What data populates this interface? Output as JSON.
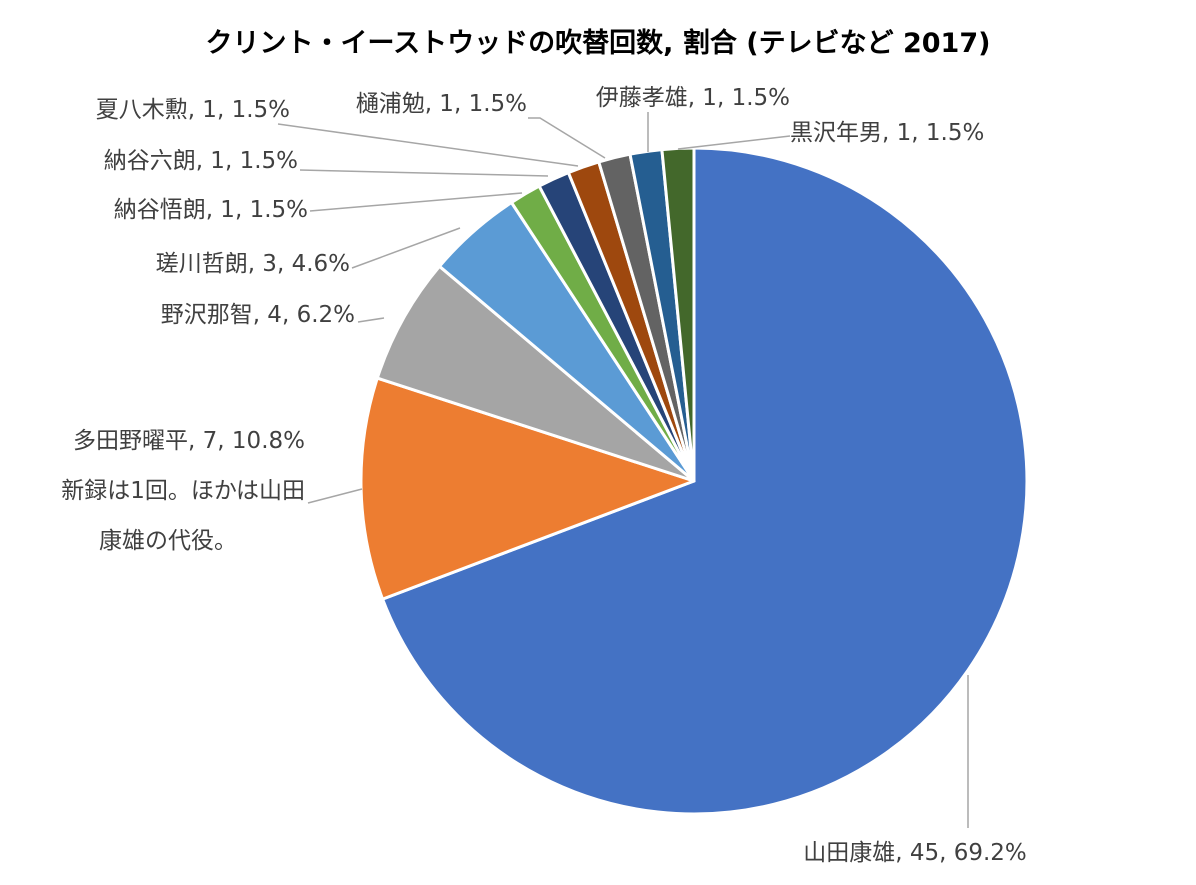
{
  "chart_data": {
    "type": "pie",
    "title": "クリント・イーストウッドの吹替回数, 割合 (テレビなど 2017)",
    "slices": [
      {
        "name": "山田康雄",
        "value": 45,
        "percent": "69.2%",
        "color": "#4472c4",
        "label": [
          "山田康雄, 45, 69.2%"
        ]
      },
      {
        "name": "多田野曜平",
        "value": 7,
        "percent": "10.8%",
        "color": "#ed7d31",
        "label": [
          "多田野曜平, 7, 10.8%",
          "新録は1回。ほかは山田",
          "康雄の代役。"
        ]
      },
      {
        "name": "野沢那智",
        "value": 4,
        "percent": "6.2%",
        "color": "#a5a5a5",
        "label": [
          "野沢那智, 4, 6.2%"
        ]
      },
      {
        "name": "瑳川哲朗",
        "value": 3,
        "percent": "4.6%",
        "color": "#5b9bd5",
        "label": [
          "瑳川哲朗, 3, 4.6%"
        ]
      },
      {
        "name": "納谷悟朗",
        "value": 1,
        "percent": "1.5%",
        "color": "#70ad47",
        "label": [
          "納谷悟朗, 1, 1.5%"
        ]
      },
      {
        "name": "納谷六朗",
        "value": 1,
        "percent": "1.5%",
        "color": "#264478",
        "label": [
          "納谷六朗, 1, 1.5%"
        ]
      },
      {
        "name": "夏八木勲",
        "value": 1,
        "percent": "1.5%",
        "color": "#9e480e",
        "label": [
          "夏八木勲, 1, 1.5%"
        ]
      },
      {
        "name": "樋浦勉",
        "value": 1,
        "percent": "1.5%",
        "color": "#636363",
        "label": [
          "樋浦勉, 1, 1.5%"
        ]
      },
      {
        "name": "伊藤孝雄",
        "value": 1,
        "percent": "1.5%",
        "color": "#255e91",
        "label": [
          "伊藤孝雄, 1, 1.5%"
        ]
      },
      {
        "name": "黒沢年男",
        "value": 1,
        "percent": "1.5%",
        "color": "#43682b",
        "label": [
          "黒沢年男, 1, 1.5%"
        ]
      }
    ],
    "legend": "none"
  }
}
